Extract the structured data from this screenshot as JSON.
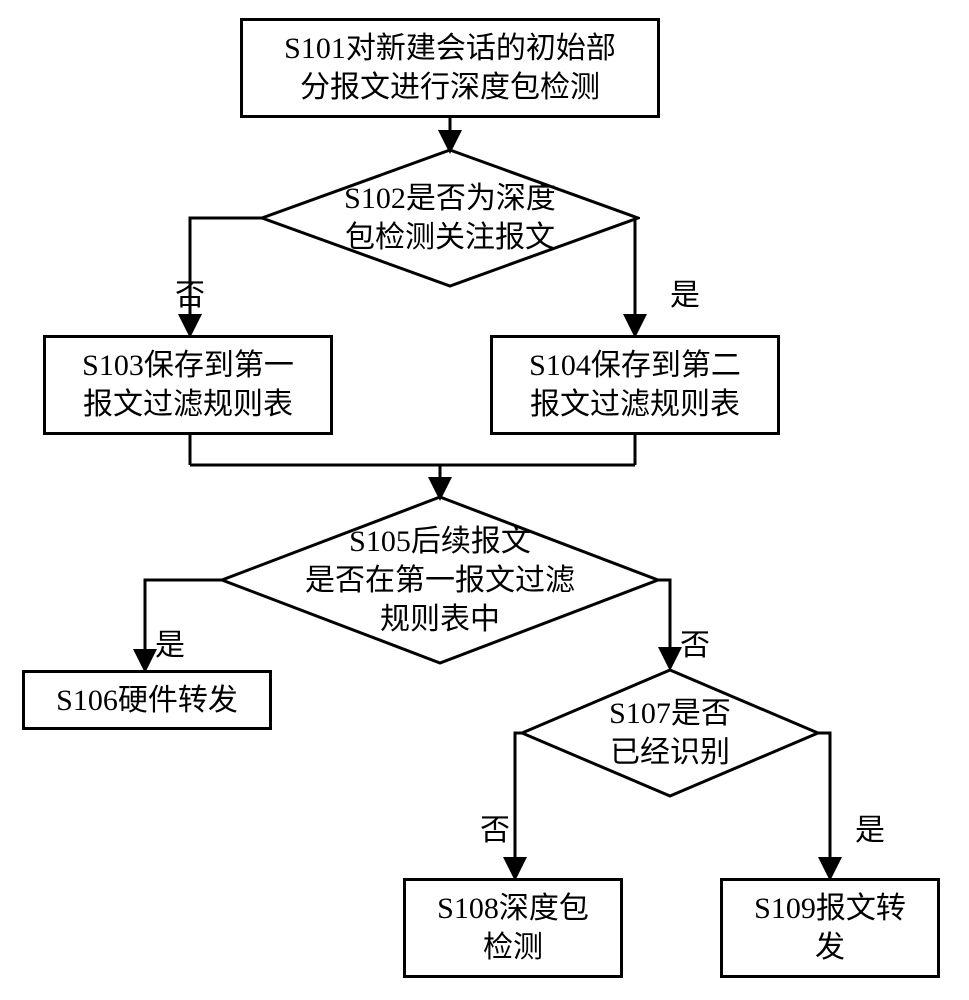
{
  "flowchart": {
    "type": "flowchart",
    "background_color": "#ffffff",
    "stroke_color": "#000000",
    "stroke_width": 3,
    "font_family": "SimSun",
    "font_size_box": 30,
    "font_size_label": 30,
    "nodes": {
      "s101": {
        "id": "S101",
        "text": "S101对新建会话的初始部\n分报文进行深度包检测",
        "shape": "rect"
      },
      "s102": {
        "id": "S102",
        "text": "S102是否为深度\n包检测关注报文",
        "shape": "diamond"
      },
      "s103": {
        "id": "S103",
        "text": "S103保存到第一\n报文过滤规则表",
        "shape": "rect"
      },
      "s104": {
        "id": "S104",
        "text": "S104保存到第二\n报文过滤规则表",
        "shape": "rect"
      },
      "s105": {
        "id": "S105",
        "text": "S105后续报文\n是否在第一报文过滤\n规则表中",
        "shape": "diamond"
      },
      "s106": {
        "id": "S106",
        "text": "S106硬件转发",
        "shape": "rect"
      },
      "s107": {
        "id": "S107",
        "text": "S107是否\n已经识别",
        "shape": "diamond"
      },
      "s108": {
        "id": "S108",
        "text": "S108深度包\n检测",
        "shape": "rect"
      },
      "s109": {
        "id": "S109",
        "text": "S109报文转\n发",
        "shape": "rect"
      }
    },
    "edge_labels": {
      "s102_no": "否",
      "s102_yes": "是",
      "s105_yes": "是",
      "s105_no": "否",
      "s107_no": "否",
      "s107_yes": "是"
    }
  }
}
